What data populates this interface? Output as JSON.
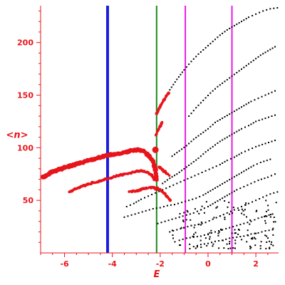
{
  "chart_data": {
    "type": "scatter",
    "title": "",
    "xlabel": "E",
    "ylabel": "<n>",
    "xlim": [
      -7.0,
      2.95
    ],
    "ylim": [
      0,
      235
    ],
    "x_ticks": [
      -6,
      -4,
      -2,
      0,
      2
    ],
    "y_ticks": [
      50,
      100,
      150,
      200
    ],
    "grid": false,
    "legend": "none",
    "colors": {
      "axes": "#e8141b",
      "highlight_points": "#e8141b",
      "background_points": "#000000",
      "line_blue": "#1d1ddd",
      "line_green": "#1a8a1a",
      "line_magenta": "#e81ee0"
    },
    "vertical_lines": [
      {
        "x": -4.2,
        "color": "#1d1ddd"
      },
      {
        "x": -2.15,
        "color": "#1a8a1a"
      },
      {
        "x": -0.95,
        "color": "#e81ee0"
      },
      {
        "x": 1.0,
        "color": "#e81ee0"
      }
    ],
    "series": [
      {
        "style": "highlight",
        "color": "#e8141b",
        "curves": [
          {
            "x": [
              -6.9,
              -6.6,
              -6.3,
              -6.0,
              -5.7,
              -5.4,
              -5.1,
              -4.8,
              -4.5,
              -4.2,
              -3.9,
              -3.6,
              -3.3,
              -3.0,
              -2.7,
              -2.5,
              -2.3,
              -2.2,
              -2.15
            ],
            "y": [
              72,
              76,
              79,
              81,
              83,
              85,
              87,
              89,
              91,
              93,
              94,
              95,
              97,
              98,
              97,
              93,
              87,
              79,
              70
            ]
          },
          {
            "x": [
              -5.8,
              -5.5,
              -5.2,
              -4.9,
              -4.6,
              -4.3,
              -4.0,
              -3.7,
              -3.4,
              -3.1,
              -2.8,
              -2.55,
              -2.35,
              -2.25
            ],
            "y": [
              58,
              61,
              64,
              66,
              68,
              70,
              72,
              74,
              75,
              77,
              78,
              77,
              74,
              70
            ]
          },
          {
            "x": [
              -3.3,
              -3.0,
              -2.7,
              -2.45,
              -2.25,
              -2.1
            ],
            "y": [
              58,
              59,
              61,
              62,
              62,
              60
            ]
          },
          {
            "x": [
              -2.15,
              -2.05,
              -1.95,
              -1.85,
              -1.75,
              -1.65
            ],
            "y": [
              132,
              137,
              141,
              145,
              149,
              152
            ]
          },
          {
            "x": [
              -2.18,
              -2.1,
              -2.0,
              -1.92
            ],
            "y": [
              112,
              116,
              120,
              124
            ]
          },
          {
            "x": [
              -2.12,
              -2.0,
              -1.9,
              -1.8,
              -1.72,
              -1.65,
              -1.58
            ],
            "y": [
              62,
              60,
              58,
              56,
              54,
              52,
              50
            ]
          },
          {
            "x": [
              -2.05,
              -1.95,
              -1.85,
              -1.75,
              -1.62
            ],
            "y": [
              82,
              80,
              78,
              76,
              74
            ]
          }
        ],
        "markers": [
          {
            "x": -2.2,
            "y": 98
          }
        ]
      },
      {
        "style": "background",
        "color": "#000000",
        "curves": [
          {
            "x": [
              -1.6,
              -1.3,
              -1.0,
              -0.7,
              -0.4,
              -0.1,
              0.2,
              0.5,
              0.8,
              1.1,
              1.4,
              1.7,
              2.0,
              2.3,
              2.6,
              2.9
            ],
            "y": [
              155,
              165,
              174,
              182,
              189,
              195,
              201,
              207,
              212,
              216,
              220,
              224,
              227,
              230,
              232,
              233
            ]
          },
          {
            "x": [
              -0.8,
              -0.5,
              -0.2,
              0.1,
              0.4,
              0.7,
              1.0,
              1.3,
              1.6,
              1.9,
              2.2,
              2.5,
              2.8
            ],
            "y": [
              130,
              138,
              145,
              152,
              158,
              163,
              168,
              173,
              178,
              183,
              188,
              192,
              196
            ]
          },
          {
            "x": [
              -1.5,
              -1.2,
              -0.9,
              -0.6,
              -0.3,
              0.0,
              0.3,
              0.6,
              0.9,
              1.2,
              1.5,
              1.8,
              2.1,
              2.4,
              2.8
            ],
            "y": [
              92,
              97,
              102,
              108,
              113,
              118,
              124,
              128,
              132,
              136,
              140,
              144,
              147,
              150,
              154
            ]
          },
          {
            "x": [
              -1.9,
              -1.6,
              -1.3,
              -1.0,
              -0.7,
              -0.4,
              -0.1,
              0.2,
              0.5,
              0.8,
              1.1,
              1.4,
              1.7,
              2.0,
              2.4,
              2.8
            ],
            "y": [
              66,
              71,
              75,
              80,
              85,
              90,
              96,
              101,
              106,
              110,
              114,
              118,
              121,
              125,
              128,
              131
            ]
          },
          {
            "x": [
              -3.4,
              -3.1,
              -2.8,
              -2.5,
              -2.2,
              -1.9,
              -1.6,
              -1.3,
              -1.0,
              -0.7,
              -0.4,
              -0.1,
              0.2,
              0.5,
              0.8,
              1.1,
              1.4,
              1.7,
              2.0,
              2.4,
              2.8
            ],
            "y": [
              44,
              47,
              51,
              54,
              57,
              60,
              63,
              66,
              69,
              72,
              75,
              78,
              81,
              84,
              88,
              91,
              95,
              98,
              101,
              104,
              107
            ]
          },
          {
            "x": [
              -3.5,
              -3.2,
              -2.9,
              -2.6,
              -2.3,
              -2.0,
              -1.7,
              -1.4,
              -1.1,
              -0.8,
              -0.5,
              -0.2,
              0.1,
              0.4,
              0.7,
              1.0,
              1.3,
              1.6,
              1.9,
              2.2,
              2.6
            ],
            "y": [
              34,
              36,
              38,
              40,
              42,
              43,
              45,
              46,
              48,
              50,
              52,
              55,
              59,
              63,
              67,
              71,
              75,
              79,
              83,
              86,
              89
            ]
          },
          {
            "x": [
              -2.1,
              -1.8,
              -1.5,
              -1.2,
              -0.9,
              -0.6,
              -0.3,
              0.0,
              0.3,
              0.6,
              0.9,
              1.2,
              1.5,
              1.8,
              2.1,
              2.5,
              2.8
            ],
            "y": [
              28,
              30,
              32,
              34,
              36,
              38,
              41,
              44,
              48,
              52,
              56,
              60,
              63,
              66,
              69,
              72,
              75
            ]
          },
          {
            "x": [
              -1.6,
              -1.3,
              -1.0,
              -0.7,
              -0.4,
              -0.1,
              0.2,
              0.5,
              0.8,
              1.1,
              1.4,
              1.7,
              2.0,
              2.3,
              2.6,
              2.9
            ],
            "y": [
              20,
              22,
              24,
              26,
              27,
              29,
              32,
              35,
              38,
              41,
              44,
              47,
              50,
              53,
              56,
              58
            ]
          },
          {
            "x": [
              -1.2,
              -0.9,
              -0.6,
              -0.3,
              0.0,
              0.3,
              0.6,
              0.9,
              1.2,
              1.5,
              1.8,
              2.1,
              2.4,
              2.7
            ],
            "y": [
              12,
              14,
              15,
              16,
              18,
              20,
              22,
              24,
              26,
              28,
              30,
              33,
              35,
              37
            ]
          },
          {
            "x": [
              -0.6,
              -0.3,
              0.0,
              0.3,
              0.6,
              0.9,
              1.2,
              1.5,
              1.8,
              2.1,
              2.4,
              2.7
            ],
            "y": [
              6,
              8,
              9,
              11,
              12,
              14,
              15,
              16,
              18,
              19,
              21,
              22
            ]
          }
        ],
        "cloud": {
          "x_range": [
            -1.5,
            2.9
          ],
          "y_range": [
            4,
            50
          ],
          "count": 140
        }
      }
    ]
  }
}
